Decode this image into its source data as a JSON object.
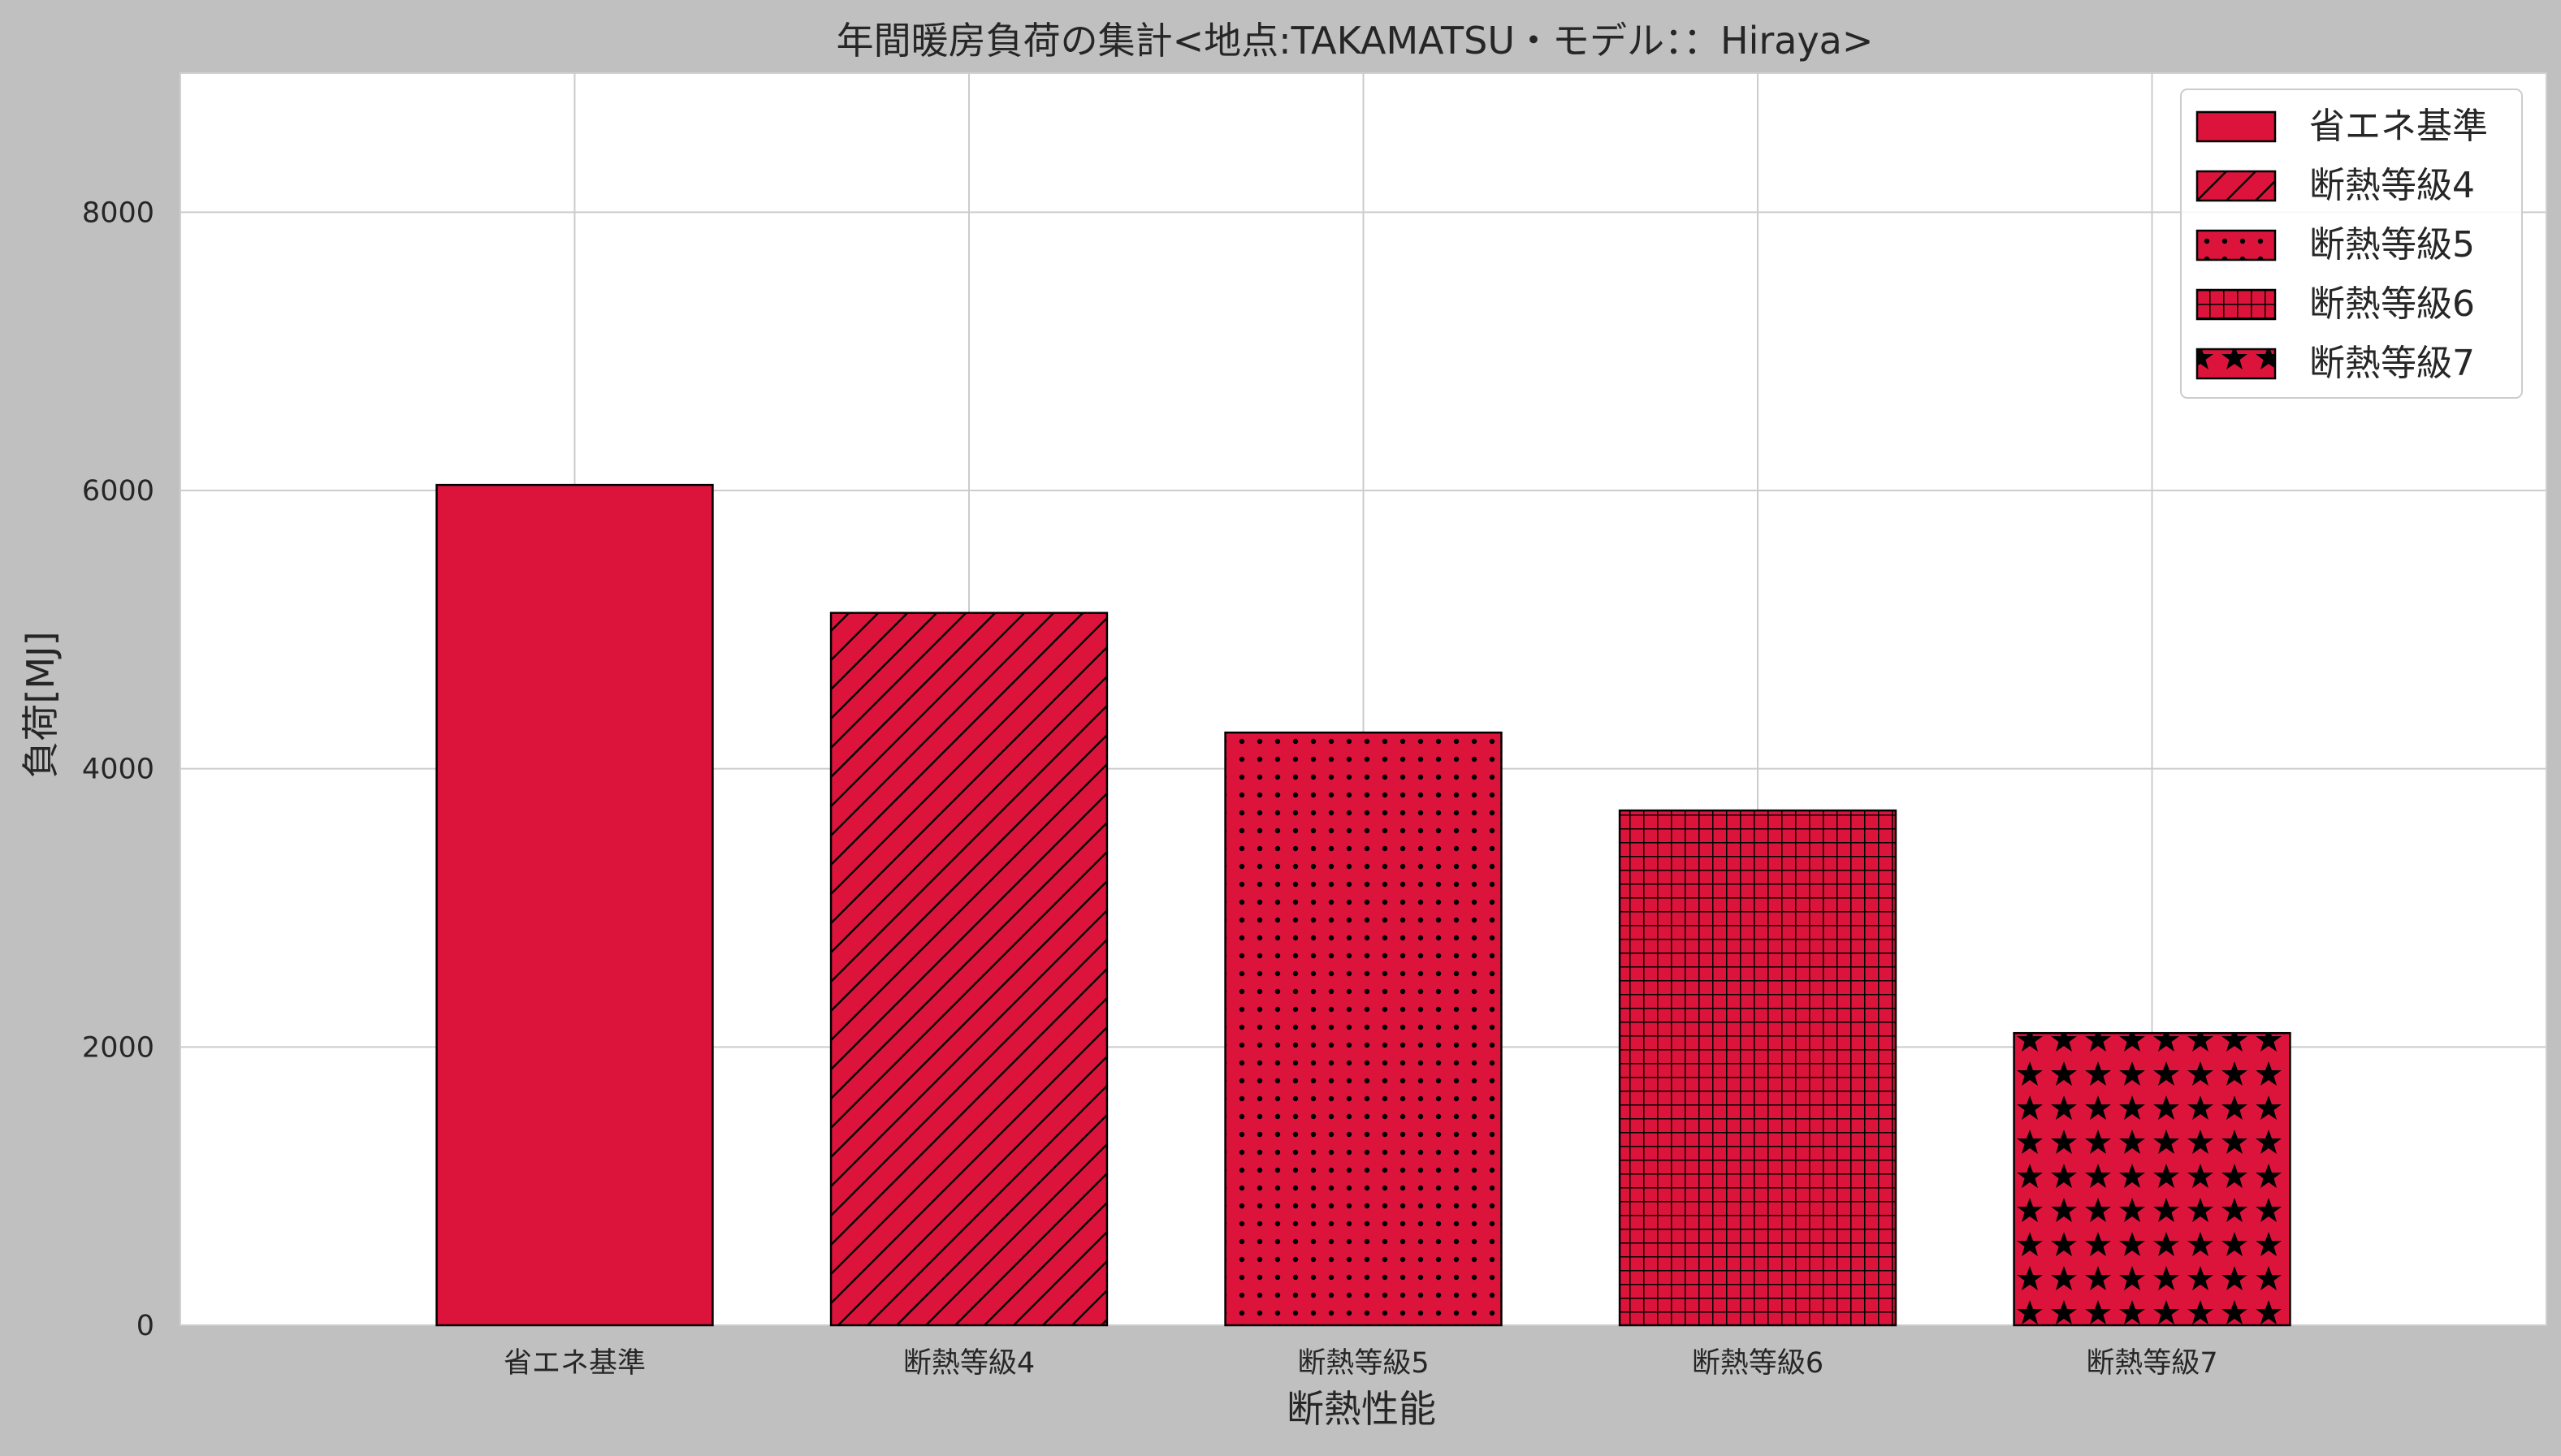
{
  "chart_data": {
    "type": "bar",
    "title": "年間暖房負荷の集計<地点:TAKAMATSU・モデル：：Hiraya>",
    "xlabel": "断熱性能",
    "ylabel": "負荷[MJ]",
    "categories": [
      "省エネ基準",
      "断熱等級4",
      "断熱等級5",
      "断熱等級6",
      "断熱等級7"
    ],
    "values": [
      6040,
      5120,
      4260,
      3700,
      2100
    ],
    "patterns": [
      "none",
      "diagonal",
      "dots",
      "grid",
      "stars"
    ],
    "ylim": [
      0,
      9000
    ],
    "yticks": [
      0,
      2000,
      4000,
      6000,
      8000
    ],
    "xlim": [
      -1,
      5
    ],
    "bar_width": 0.7,
    "grid": true,
    "legend_position": "top-right",
    "colors": {
      "bar": "#dc143c",
      "edge": "#000000",
      "background": "#c0c0c0",
      "plot": "#ffffff",
      "grid": "#cccccc"
    }
  }
}
